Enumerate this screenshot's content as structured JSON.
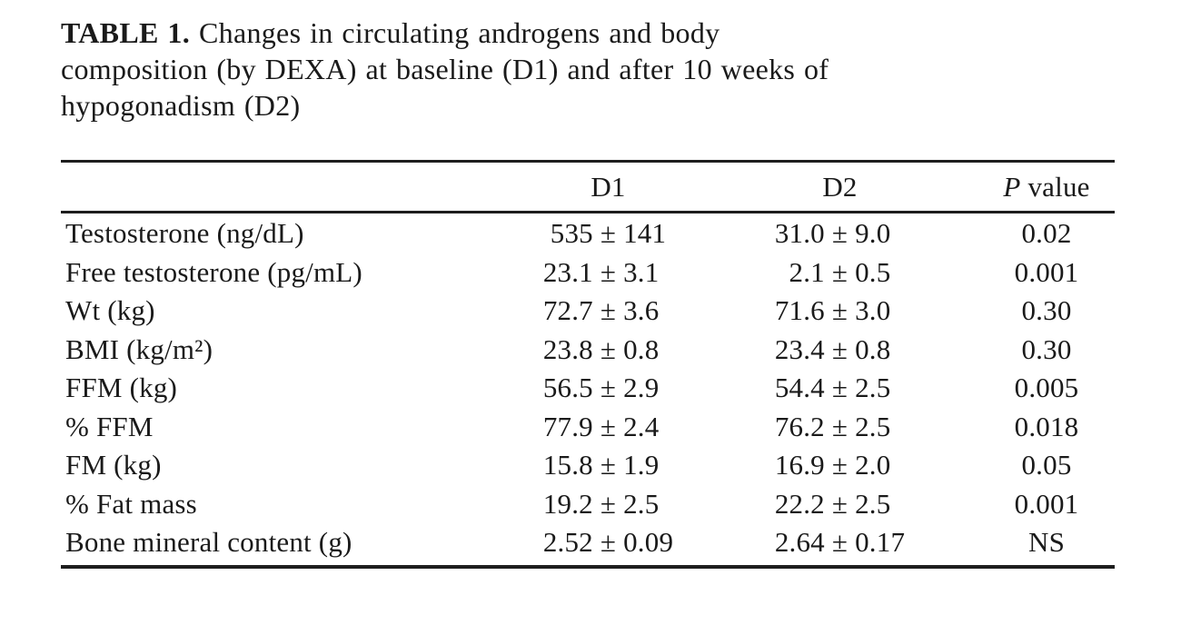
{
  "caption": {
    "label": "TABLE 1.",
    "line1": "Changes in circulating androgens and body",
    "line2": "composition (by DEXA) at baseline (D1) and after 10 weeks of",
    "line3": "hypogonadism (D2)"
  },
  "table": {
    "pm": "±",
    "columns": [
      "",
      "D1",
      "D2"
    ],
    "p_header": {
      "symbol": "P",
      "rest": " value"
    },
    "rows": [
      {
        "label": "Testosterone (ng/dL)",
        "d1": [
          "535",
          "141"
        ],
        "d2": [
          "31.0",
          "9.0"
        ],
        "p": "0.02"
      },
      {
        "label": "Free testosterone (pg/mL)",
        "d1": [
          "23.1",
          "3.1"
        ],
        "d2": [
          "2.1",
          "0.5"
        ],
        "p": "0.001"
      },
      {
        "label": "Wt (kg)",
        "d1": [
          "72.7",
          "3.6"
        ],
        "d2": [
          "71.6",
          "3.0"
        ],
        "p": "0.30"
      },
      {
        "label": "BMI (kg/m²)",
        "d1": [
          "23.8",
          "0.8"
        ],
        "d2": [
          "23.4",
          "0.8"
        ],
        "p": "0.30"
      },
      {
        "label": "FFM (kg)",
        "d1": [
          "56.5",
          "2.9"
        ],
        "d2": [
          "54.4",
          "2.5"
        ],
        "p": "0.005"
      },
      {
        "label": "% FFM",
        "d1": [
          "77.9",
          "2.4"
        ],
        "d2": [
          "76.2",
          "2.5"
        ],
        "p": "0.018"
      },
      {
        "label": "FM (kg)",
        "d1": [
          "15.8",
          "1.9"
        ],
        "d2": [
          "16.9",
          "2.0"
        ],
        "p": "0.05"
      },
      {
        "label": "% Fat mass",
        "d1": [
          "19.2",
          "2.5"
        ],
        "d2": [
          "22.2",
          "2.5"
        ],
        "p": "0.001"
      },
      {
        "label": "Bone mineral content (g)",
        "d1": [
          "2.52",
          "0.09"
        ],
        "d2": [
          "2.64",
          "0.17"
        ],
        "p": "NS"
      }
    ]
  }
}
